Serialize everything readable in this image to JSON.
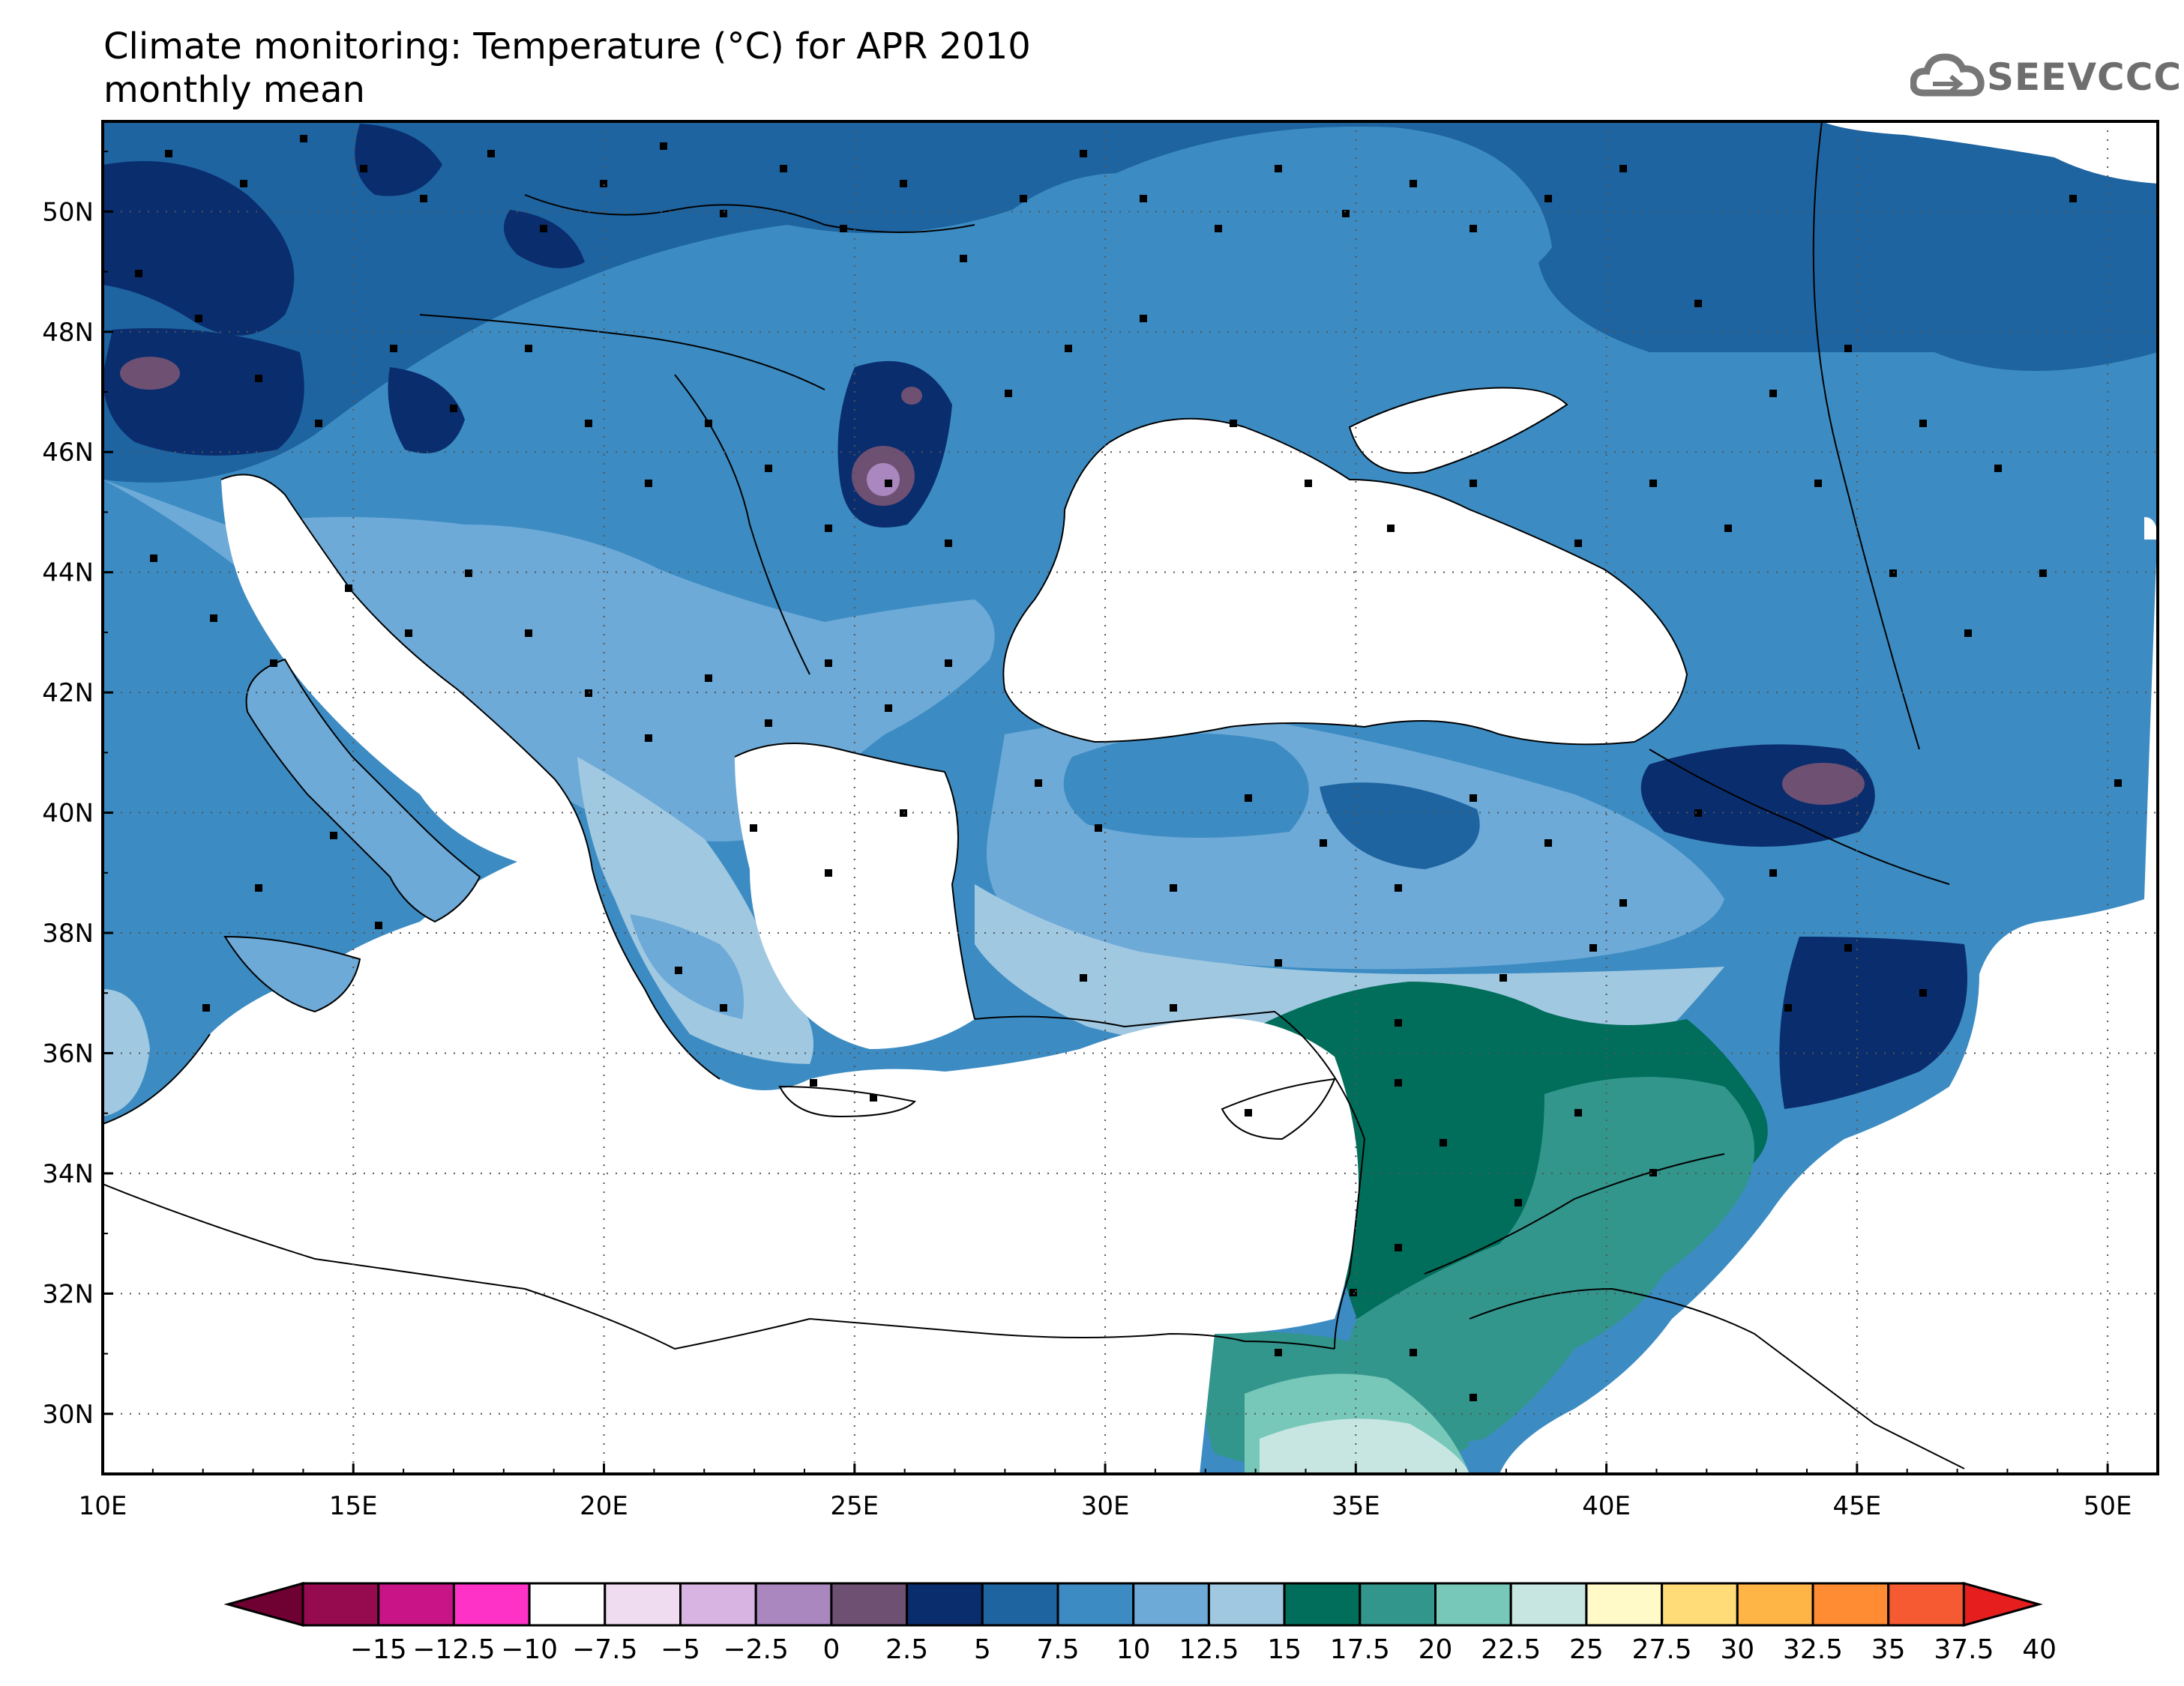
{
  "title": "Climate monitoring: Temperature (°C) for APR 2010",
  "subtitle": "monthly mean",
  "logo": {
    "text": "SEEVCCC",
    "icon": "cloud-icon"
  },
  "map": {
    "lon_range": [
      10,
      51
    ],
    "lat_range": [
      29,
      51.5
    ],
    "x_ticks": [
      "10E",
      "15E",
      "20E",
      "25E",
      "30E",
      "35E",
      "40E",
      "45E",
      "50E"
    ],
    "y_ticks": [
      "30N",
      "32N",
      "34N",
      "36N",
      "38N",
      "40N",
      "42N",
      "44N",
      "46N",
      "48N",
      "50N"
    ],
    "grid": "dotted"
  },
  "colorbar": {
    "labels": [
      "−15",
      "−12.5",
      "−10",
      "−7.5",
      "−5",
      "−2.5",
      "0",
      "2.5",
      "5",
      "7.5",
      "10",
      "12.5",
      "15",
      "17.5",
      "20",
      "22.5",
      "25",
      "27.5",
      "30",
      "32.5",
      "35",
      "37.5",
      "40"
    ],
    "colors": [
      "#960a50",
      "#c81487",
      "#ff32c8",
      "#ffffff",
      "#f0dcf0",
      "#d7b4e1",
      "#aa87be",
      "#6e5073",
      "#0a2d6e",
      "#1e64a0",
      "#3c8cc3",
      "#6eaad7",
      "#a0c8e1",
      "#006e5a",
      "#32968c",
      "#78c8b9",
      "#c8e6e1",
      "#fffac8",
      "#ffdc78",
      "#ffb446",
      "#ff8c32",
      "#f55a32"
    ],
    "under_color": "#6e0032",
    "over_color": "#e61e1e"
  }
}
